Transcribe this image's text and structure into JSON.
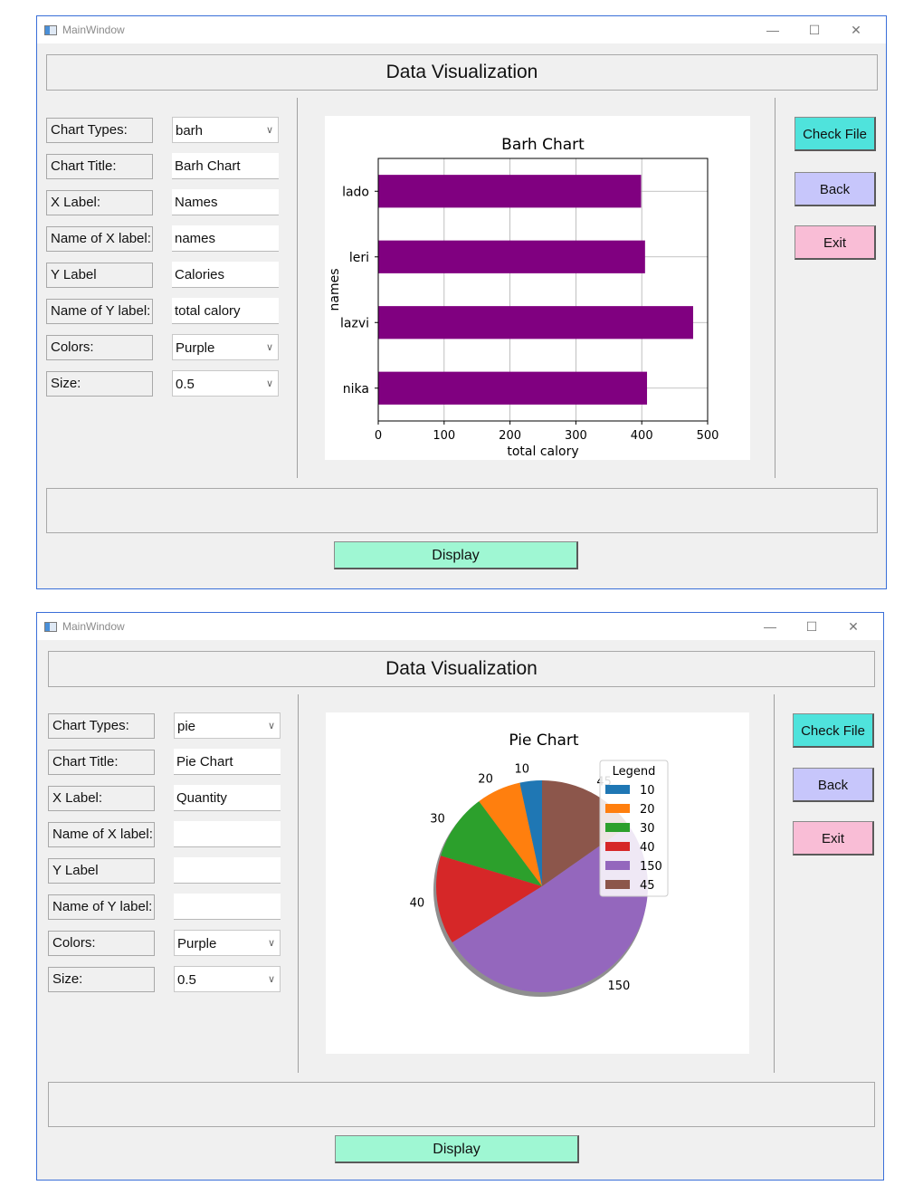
{
  "windows": [
    {
      "title": "MainWindow",
      "heading": "Data Visualization",
      "form": [
        {
          "label": "Chart Types:",
          "value": "barh",
          "combo": true
        },
        {
          "label": "Chart Title:",
          "value": "Barh Chart",
          "combo": false
        },
        {
          "label": "X Label:",
          "value": "Names",
          "combo": false
        },
        {
          "label": "Name of X label:",
          "value": "names",
          "combo": false
        },
        {
          "label": "Y Label",
          "value": "Calories",
          "combo": false
        },
        {
          "label": "Name of Y label:",
          "value": "total calory",
          "combo": false
        },
        {
          "label": "Colors:",
          "value": "Purple",
          "combo": true
        },
        {
          "label": "Size:",
          "value": "0.5",
          "combo": true
        }
      ],
      "buttons": {
        "check_file": "Check File",
        "back": "Back",
        "exit": "Exit",
        "display": "Display"
      }
    },
    {
      "title": "MainWindow",
      "heading": "Data Visualization",
      "form": [
        {
          "label": "Chart Types:",
          "value": "pie",
          "combo": true
        },
        {
          "label": "Chart Title:",
          "value": "Pie Chart",
          "combo": false
        },
        {
          "label": "X Label:",
          "value": "Quantity",
          "combo": false
        },
        {
          "label": "Name of X label:",
          "value": "",
          "combo": false
        },
        {
          "label": "Y Label",
          "value": "",
          "combo": false
        },
        {
          "label": "Name of Y label:",
          "value": "",
          "combo": false
        },
        {
          "label": "Colors:",
          "value": "Purple",
          "combo": true
        },
        {
          "label": "Size:",
          "value": "0.5",
          "combo": true
        }
      ],
      "buttons": {
        "check_file": "Check File",
        "back": "Back",
        "exit": "Exit",
        "display": "Display"
      }
    }
  ],
  "chart_data": [
    {
      "type": "bar",
      "orientation": "horizontal",
      "title": "Barh Chart",
      "categories": [
        "nika",
        "lazvi",
        "leri",
        "lado"
      ],
      "values": [
        408,
        478,
        405,
        399
      ],
      "xlabel": "total calory",
      "ylabel": "names",
      "xlim": [
        0,
        500
      ],
      "xticks": [
        0,
        100,
        200,
        300,
        400,
        500
      ],
      "grid": true,
      "color": "#800080"
    },
    {
      "type": "pie",
      "title": "Pie Chart",
      "labels": [
        "10",
        "20",
        "30",
        "40",
        "150",
        "45"
      ],
      "values": [
        10,
        20,
        30,
        40,
        150,
        45
      ],
      "colors": [
        "#1f77b4",
        "#ff7f0e",
        "#2ca02c",
        "#d62728",
        "#9467bd",
        "#8c564b"
      ],
      "legend_title": "Legend",
      "legend_position": "top-right",
      "shadow": true
    }
  ]
}
